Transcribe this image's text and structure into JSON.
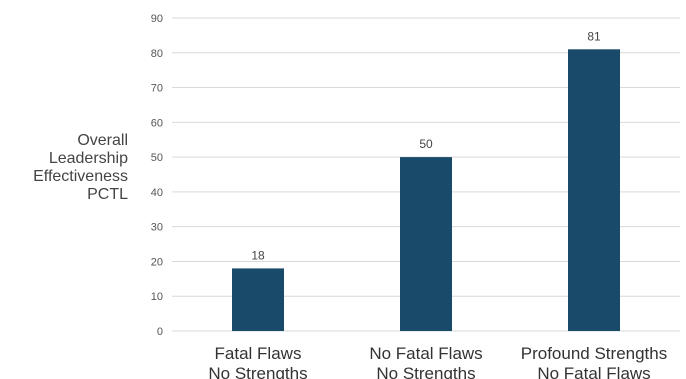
{
  "chart_data": {
    "type": "bar",
    "categories": [
      [
        "Fatal Flaws",
        "No Strengths"
      ],
      [
        "No Fatal Flaws",
        "No Strengths"
      ],
      [
        "Profound Strengths",
        "No Fatal Flaws"
      ]
    ],
    "values": [
      18,
      50,
      81
    ],
    "ylabel_lines": [
      "Overall",
      "Leadership",
      "Effectiveness",
      "PCTL"
    ],
    "xlabel": "",
    "title": "",
    "ylim": [
      0,
      90
    ],
    "yticks": [
      0,
      10,
      20,
      30,
      40,
      50,
      60,
      70,
      80,
      90
    ],
    "grid": true,
    "legend": "none",
    "bar_color": "#1a4a6a",
    "grid_color": "#d9d9d9"
  }
}
